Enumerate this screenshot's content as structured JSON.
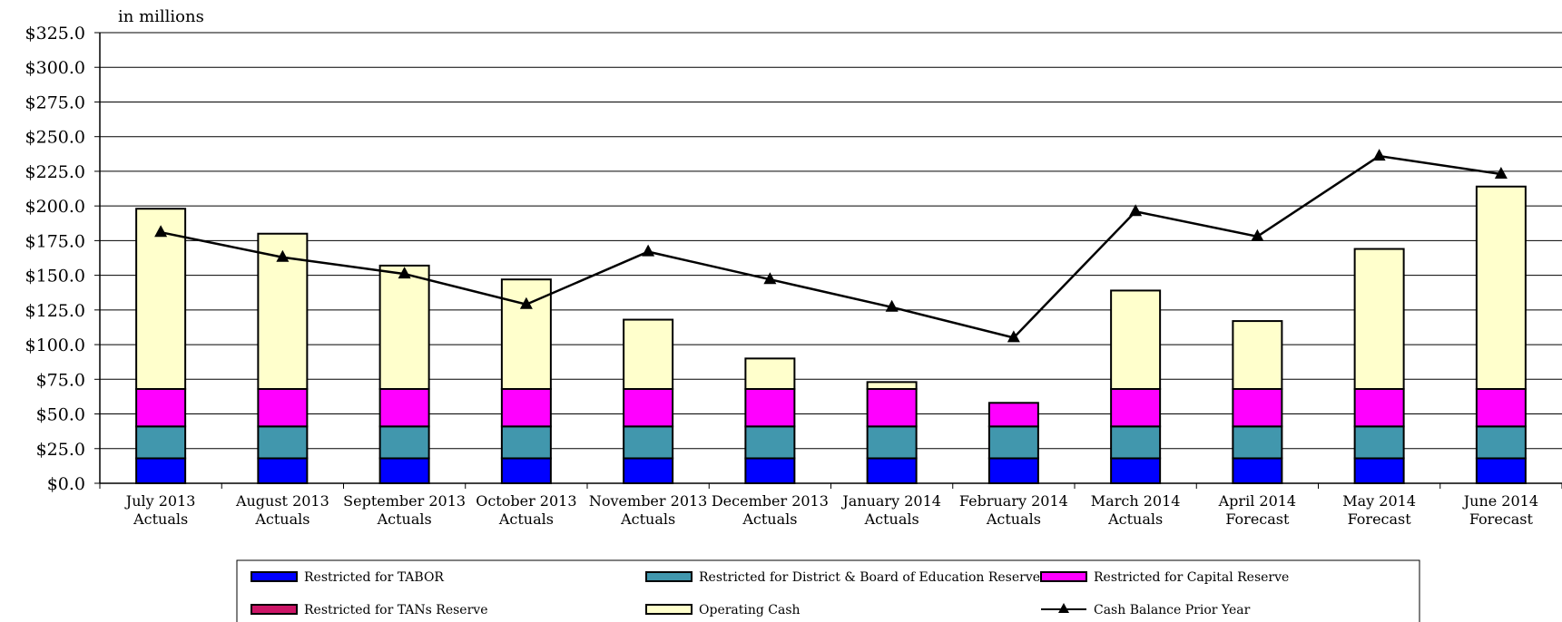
{
  "chart_data": {
    "type": "bar",
    "stacked": true,
    "unit_label": "in millions",
    "categories": [
      [
        "July 2013",
        "Actuals"
      ],
      [
        "August 2013",
        "Actuals"
      ],
      [
        "September 2013",
        "Actuals"
      ],
      [
        "October 2013",
        "Actuals"
      ],
      [
        "November 2013",
        "Actuals"
      ],
      [
        "December 2013",
        "Actuals"
      ],
      [
        "January 2014",
        "Actuals"
      ],
      [
        "February 2014",
        "Actuals"
      ],
      [
        "March 2014",
        "Actuals"
      ],
      [
        "April 2014",
        "Forecast"
      ],
      [
        "May 2014",
        "Forecast"
      ],
      [
        "June 2014",
        "Forecast"
      ]
    ],
    "ylim": [
      0,
      325
    ],
    "yticks": [
      0,
      25,
      50,
      75,
      100,
      125,
      150,
      175,
      200,
      225,
      250,
      275,
      300,
      325
    ],
    "ytick_labels": [
      "$0.0",
      "$25.0",
      "$50.0",
      "$75.0",
      "$100.0",
      "$125.0",
      "$150.0",
      "$175.0",
      "$200.0",
      "$225.0",
      "$250.0",
      "$275.0",
      "$300.0",
      "$325.0"
    ],
    "grid": true,
    "legend_position": "bottom",
    "series": [
      {
        "name": "Restricted for TABOR",
        "kind": "bar",
        "color": "#0000FF",
        "values": [
          18,
          18,
          18,
          18,
          18,
          18,
          18,
          18,
          18,
          18,
          18,
          18
        ]
      },
      {
        "name": "Restricted for District & Board of Education Reserve",
        "kind": "bar",
        "color": "#4197AD",
        "values": [
          23,
          23,
          23,
          23,
          23,
          23,
          23,
          23,
          23,
          23,
          23,
          23
        ]
      },
      {
        "name": "Restricted for Capital Reserve",
        "kind": "bar",
        "color": "#FF00FF",
        "values": [
          27,
          27,
          27,
          27,
          27,
          27,
          27,
          17,
          27,
          27,
          27,
          27
        ]
      },
      {
        "name": "Restricted for TANs Reserve",
        "kind": "bar",
        "color": "#CC1566",
        "values": [
          0,
          0,
          0,
          0,
          0,
          0,
          0,
          0,
          0,
          0,
          0,
          0
        ]
      },
      {
        "name": "Operating Cash",
        "kind": "bar",
        "color": "#FFFFCC",
        "values": [
          130,
          112,
          89,
          79,
          50,
          22,
          5,
          0,
          71,
          49,
          101,
          146
        ]
      },
      {
        "name": "Cash Balance Prior Year",
        "kind": "line",
        "color": "#000000",
        "values": [
          181,
          163,
          151,
          129,
          167,
          147,
          127,
          105,
          196,
          178,
          236,
          223
        ]
      }
    ]
  }
}
